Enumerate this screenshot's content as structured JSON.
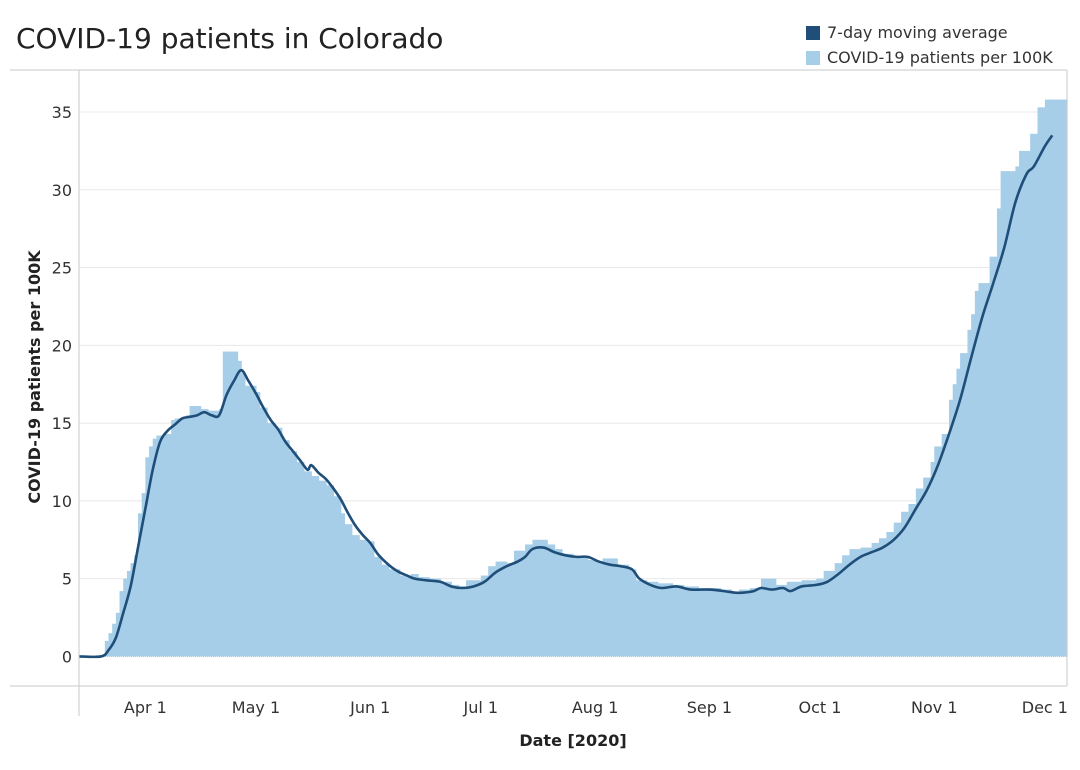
{
  "chart_data": {
    "type": "bar",
    "title": "COVID-19 patients in Colorado",
    "xlabel": "Date [2020]",
    "ylabel": "COVID-19 patients per 100K",
    "x_start": "2020-03-14",
    "x_end": "2020-12-07",
    "ylim": [
      -1.9,
      37.7
    ],
    "yticks": [
      0,
      5,
      10,
      15,
      20,
      25,
      30,
      35
    ],
    "xticks": [
      {
        "label": "Apr 1",
        "date": "2020-04-01"
      },
      {
        "label": "May 1",
        "date": "2020-05-01"
      },
      {
        "label": "Jun 1",
        "date": "2020-06-01"
      },
      {
        "label": "Jul 1",
        "date": "2020-07-01"
      },
      {
        "label": "Aug 1",
        "date": "2020-08-01"
      },
      {
        "label": "Sep 1",
        "date": "2020-09-01"
      },
      {
        "label": "Oct 1",
        "date": "2020-10-01"
      },
      {
        "label": "Nov 1",
        "date": "2020-11-01"
      },
      {
        "label": "Dec 1",
        "date": "2020-12-01"
      }
    ],
    "legend_position": "top-right",
    "series": [
      {
        "name": "7-day moving average",
        "type": "line",
        "color": "#1f4e79",
        "points": [
          [
            "2020-03-14",
            0
          ],
          [
            "2020-03-20",
            0
          ],
          [
            "2020-03-22",
            0.4
          ],
          [
            "2020-03-24",
            1.2
          ],
          [
            "2020-03-26",
            2.8
          ],
          [
            "2020-03-28",
            4.5
          ],
          [
            "2020-03-30",
            7.0
          ],
          [
            "2020-04-01",
            9.5
          ],
          [
            "2020-04-03",
            12.0
          ],
          [
            "2020-04-05",
            13.8
          ],
          [
            "2020-04-07",
            14.5
          ],
          [
            "2020-04-09",
            14.9
          ],
          [
            "2020-04-11",
            15.3
          ],
          [
            "2020-04-13",
            15.4
          ],
          [
            "2020-04-15",
            15.5
          ],
          [
            "2020-04-17",
            15.7
          ],
          [
            "2020-04-19",
            15.5
          ],
          [
            "2020-04-21",
            15.5
          ],
          [
            "2020-04-23",
            16.8
          ],
          [
            "2020-04-25",
            17.7
          ],
          [
            "2020-04-27",
            18.4
          ],
          [
            "2020-04-29",
            17.7
          ],
          [
            "2020-05-01",
            16.9
          ],
          [
            "2020-05-03",
            16.0
          ],
          [
            "2020-05-05",
            15.2
          ],
          [
            "2020-05-07",
            14.6
          ],
          [
            "2020-05-09",
            13.8
          ],
          [
            "2020-05-11",
            13.2
          ],
          [
            "2020-05-13",
            12.6
          ],
          [
            "2020-05-15",
            12.0
          ],
          [
            "2020-05-16",
            12.3
          ],
          [
            "2020-05-18",
            11.8
          ],
          [
            "2020-05-20",
            11.4
          ],
          [
            "2020-05-22",
            10.8
          ],
          [
            "2020-05-24",
            10.1
          ],
          [
            "2020-05-26",
            9.2
          ],
          [
            "2020-05-28",
            8.4
          ],
          [
            "2020-05-30",
            7.8
          ],
          [
            "2020-06-01",
            7.3
          ],
          [
            "2020-06-03",
            6.6
          ],
          [
            "2020-06-05",
            6.1
          ],
          [
            "2020-06-07",
            5.7
          ],
          [
            "2020-06-09",
            5.4
          ],
          [
            "2020-06-11",
            5.2
          ],
          [
            "2020-06-13",
            5.0
          ],
          [
            "2020-06-16",
            4.9
          ],
          [
            "2020-06-20",
            4.8
          ],
          [
            "2020-06-23",
            4.5
          ],
          [
            "2020-06-26",
            4.4
          ],
          [
            "2020-06-29",
            4.5
          ],
          [
            "2020-07-02",
            4.8
          ],
          [
            "2020-07-05",
            5.4
          ],
          [
            "2020-07-08",
            5.8
          ],
          [
            "2020-07-11",
            6.1
          ],
          [
            "2020-07-13",
            6.4
          ],
          [
            "2020-07-15",
            6.9
          ],
          [
            "2020-07-18",
            7.0
          ],
          [
            "2020-07-21",
            6.7
          ],
          [
            "2020-07-24",
            6.5
          ],
          [
            "2020-07-27",
            6.4
          ],
          [
            "2020-07-30",
            6.4
          ],
          [
            "2020-08-02",
            6.1
          ],
          [
            "2020-08-05",
            5.9
          ],
          [
            "2020-08-08",
            5.8
          ],
          [
            "2020-08-11",
            5.6
          ],
          [
            "2020-08-13",
            5.0
          ],
          [
            "2020-08-16",
            4.6
          ],
          [
            "2020-08-19",
            4.4
          ],
          [
            "2020-08-23",
            4.5
          ],
          [
            "2020-08-27",
            4.3
          ],
          [
            "2020-09-01",
            4.3
          ],
          [
            "2020-09-05",
            4.2
          ],
          [
            "2020-09-08",
            4.1
          ],
          [
            "2020-09-10",
            4.1
          ],
          [
            "2020-09-13",
            4.2
          ],
          [
            "2020-09-15",
            4.4
          ],
          [
            "2020-09-18",
            4.3
          ],
          [
            "2020-09-21",
            4.4
          ],
          [
            "2020-09-23",
            4.2
          ],
          [
            "2020-09-26",
            4.5
          ],
          [
            "2020-09-30",
            4.6
          ],
          [
            "2020-10-03",
            4.8
          ],
          [
            "2020-10-06",
            5.3
          ],
          [
            "2020-10-09",
            5.9
          ],
          [
            "2020-10-12",
            6.4
          ],
          [
            "2020-10-15",
            6.7
          ],
          [
            "2020-10-18",
            7.0
          ],
          [
            "2020-10-21",
            7.5
          ],
          [
            "2020-10-24",
            8.3
          ],
          [
            "2020-10-27",
            9.5
          ],
          [
            "2020-10-30",
            10.7
          ],
          [
            "2020-11-02",
            12.3
          ],
          [
            "2020-11-05",
            14.3
          ],
          [
            "2020-11-08",
            16.5
          ],
          [
            "2020-11-11",
            19.2
          ],
          [
            "2020-11-14",
            21.8
          ],
          [
            "2020-11-17",
            24.0
          ],
          [
            "2020-11-20",
            26.3
          ],
          [
            "2020-11-23",
            29.2
          ],
          [
            "2020-11-26",
            31.0
          ],
          [
            "2020-11-28",
            31.5
          ],
          [
            "2020-12-01",
            32.8
          ],
          [
            "2020-12-03",
            33.5
          ]
        ]
      },
      {
        "name": "COVID-19 patients per 100K",
        "type": "bar",
        "color": "#a6cee8",
        "points": [
          [
            "2020-03-14",
            0
          ],
          [
            "2020-03-20",
            0
          ],
          [
            "2020-03-21",
            1.0
          ],
          [
            "2020-03-22",
            1.5
          ],
          [
            "2020-03-23",
            2.1
          ],
          [
            "2020-03-24",
            2.8
          ],
          [
            "2020-03-25",
            4.2
          ],
          [
            "2020-03-26",
            5.0
          ],
          [
            "2020-03-27",
            5.5
          ],
          [
            "2020-03-28",
            6.0
          ],
          [
            "2020-03-29",
            6.5
          ],
          [
            "2020-03-30",
            9.2
          ],
          [
            "2020-03-31",
            10.5
          ],
          [
            "2020-04-01",
            12.8
          ],
          [
            "2020-04-02",
            13.5
          ],
          [
            "2020-04-03",
            14.0
          ],
          [
            "2020-04-04",
            14.2
          ],
          [
            "2020-04-06",
            14.3
          ],
          [
            "2020-04-08",
            15.2
          ],
          [
            "2020-04-09",
            15.3
          ],
          [
            "2020-04-12",
            15.5
          ],
          [
            "2020-04-13",
            16.1
          ],
          [
            "2020-04-16",
            15.9
          ],
          [
            "2020-04-18",
            15.8
          ],
          [
            "2020-04-21",
            15.9
          ],
          [
            "2020-04-22",
            19.6
          ],
          [
            "2020-04-26",
            19.0
          ],
          [
            "2020-04-27",
            18.2
          ],
          [
            "2020-04-28",
            17.4
          ],
          [
            "2020-05-01",
            17.0
          ],
          [
            "2020-05-02",
            16.0
          ],
          [
            "2020-05-04",
            15.0
          ],
          [
            "2020-05-06",
            14.7
          ],
          [
            "2020-05-08",
            13.9
          ],
          [
            "2020-05-10",
            13.2
          ],
          [
            "2020-05-12",
            12.5
          ],
          [
            "2020-05-14",
            11.9
          ],
          [
            "2020-05-16",
            11.6
          ],
          [
            "2020-05-18",
            11.3
          ],
          [
            "2020-05-20",
            11.0
          ],
          [
            "2020-05-22",
            10.3
          ],
          [
            "2020-05-24",
            9.2
          ],
          [
            "2020-05-25",
            8.5
          ],
          [
            "2020-05-27",
            7.8
          ],
          [
            "2020-05-29",
            7.5
          ],
          [
            "2020-05-31",
            7.4
          ],
          [
            "2020-06-02",
            6.4
          ],
          [
            "2020-06-04",
            5.9
          ],
          [
            "2020-06-06",
            5.6
          ],
          [
            "2020-06-09",
            5.2
          ],
          [
            "2020-06-12",
            5.3
          ],
          [
            "2020-06-14",
            5.1
          ],
          [
            "2020-06-17",
            5.0
          ],
          [
            "2020-06-20",
            4.8
          ],
          [
            "2020-06-23",
            4.6
          ],
          [
            "2020-06-25",
            4.5
          ],
          [
            "2020-06-27",
            4.9
          ],
          [
            "2020-07-01",
            5.2
          ],
          [
            "2020-07-03",
            5.8
          ],
          [
            "2020-07-05",
            6.1
          ],
          [
            "2020-07-08",
            6.0
          ],
          [
            "2020-07-10",
            6.8
          ],
          [
            "2020-07-13",
            7.2
          ],
          [
            "2020-07-15",
            7.5
          ],
          [
            "2020-07-19",
            7.2
          ],
          [
            "2020-07-21",
            6.9
          ],
          [
            "2020-07-23",
            6.6
          ],
          [
            "2020-07-26",
            6.4
          ],
          [
            "2020-07-30",
            6.2
          ],
          [
            "2020-08-01",
            6.1
          ],
          [
            "2020-08-03",
            6.3
          ],
          [
            "2020-08-07",
            5.9
          ],
          [
            "2020-08-10",
            5.6
          ],
          [
            "2020-08-12",
            4.9
          ],
          [
            "2020-08-15",
            4.8
          ],
          [
            "2020-08-18",
            4.7
          ],
          [
            "2020-08-22",
            4.6
          ],
          [
            "2020-08-25",
            4.5
          ],
          [
            "2020-08-29",
            4.4
          ],
          [
            "2020-09-01",
            4.4
          ],
          [
            "2020-09-04",
            4.3
          ],
          [
            "2020-09-07",
            4.1
          ],
          [
            "2020-09-09",
            4.3
          ],
          [
            "2020-09-12",
            4.4
          ],
          [
            "2020-09-15",
            5.0
          ],
          [
            "2020-09-19",
            4.6
          ],
          [
            "2020-09-22",
            4.8
          ],
          [
            "2020-09-26",
            4.9
          ],
          [
            "2020-09-30",
            5.0
          ],
          [
            "2020-10-02",
            5.5
          ],
          [
            "2020-10-05",
            6.0
          ],
          [
            "2020-10-07",
            6.5
          ],
          [
            "2020-10-09",
            6.9
          ],
          [
            "2020-10-12",
            7.0
          ],
          [
            "2020-10-15",
            7.3
          ],
          [
            "2020-10-17",
            7.6
          ],
          [
            "2020-10-19",
            8.0
          ],
          [
            "2020-10-21",
            8.6
          ],
          [
            "2020-10-23",
            9.3
          ],
          [
            "2020-10-25",
            9.8
          ],
          [
            "2020-10-27",
            10.8
          ],
          [
            "2020-10-29",
            11.5
          ],
          [
            "2020-10-31",
            12.5
          ],
          [
            "2020-11-01",
            13.5
          ],
          [
            "2020-11-03",
            14.3
          ],
          [
            "2020-11-05",
            16.5
          ],
          [
            "2020-11-06",
            17.5
          ],
          [
            "2020-11-07",
            18.5
          ],
          [
            "2020-11-08",
            19.5
          ],
          [
            "2020-11-10",
            21.0
          ],
          [
            "2020-11-11",
            22.0
          ],
          [
            "2020-11-12",
            23.5
          ],
          [
            "2020-11-13",
            24.0
          ],
          [
            "2020-11-16",
            25.7
          ],
          [
            "2020-11-18",
            28.8
          ],
          [
            "2020-11-19",
            31.2
          ],
          [
            "2020-11-23",
            31.5
          ],
          [
            "2020-11-24",
            32.5
          ],
          [
            "2020-11-27",
            33.6
          ],
          [
            "2020-11-29",
            35.3
          ],
          [
            "2020-12-01",
            35.8
          ],
          [
            "2020-12-03",
            35.8
          ]
        ]
      }
    ]
  }
}
